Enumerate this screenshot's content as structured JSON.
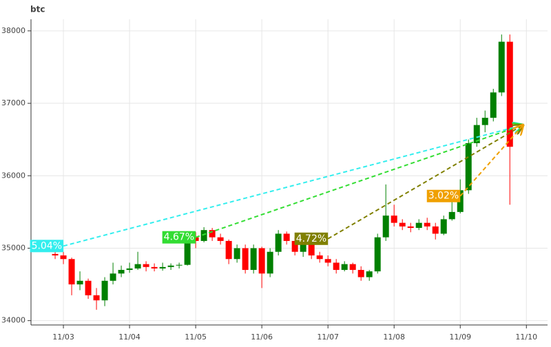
{
  "chart_data": {
    "type": "candlestick",
    "title": "btc",
    "x": [
      2.875,
      3,
      3.125,
      3.25,
      3.375,
      3.5,
      3.625,
      3.75,
      3.875,
      4,
      4.125,
      4.25,
      4.375,
      4.5,
      4.625,
      4.75,
      4.875,
      5,
      5.125,
      5.25,
      5.375,
      5.5,
      5.625,
      5.75,
      5.875,
      6,
      6.125,
      6.25,
      6.375,
      6.5,
      6.625,
      6.75,
      6.875,
      7,
      7.125,
      7.25,
      7.375,
      7.5,
      7.625,
      7.75,
      7.875,
      8,
      8.125,
      8.25,
      8.375,
      8.5,
      8.625,
      8.75,
      8.875,
      9,
      9.125,
      9.25,
      9.375,
      9.5,
      9.625,
      9.75
    ],
    "open": [
      34920,
      34900,
      34850,
      34500,
      34550,
      34350,
      34280,
      34550,
      34650,
      34700,
      34720,
      34780,
      34740,
      34720,
      34740,
      34760,
      34770,
      35150,
      35100,
      35250,
      35150,
      35100,
      34850,
      35000,
      34700,
      35000,
      34650,
      34950,
      35200,
      35100,
      34950,
      35050,
      34900,
      34850,
      34800,
      34700,
      34780,
      34700,
      34600,
      34680,
      35150,
      35450,
      35350,
      35300,
      35280,
      35350,
      35300,
      35200,
      35400,
      35500,
      35800,
      36450,
      36700,
      36800,
      37150,
      37850
    ],
    "high": [
      34950,
      34950,
      34870,
      34680,
      34580,
      34450,
      34600,
      34800,
      34760,
      34800,
      34950,
      34820,
      34790,
      34800,
      34790,
      34800,
      35170,
      35220,
      35290,
      35280,
      35200,
      35120,
      35050,
      35050,
      35050,
      35020,
      35000,
      35250,
      35230,
      35150,
      35100,
      35080,
      34950,
      34900,
      34850,
      34820,
      34800,
      34750,
      34700,
      35200,
      35880,
      35600,
      35400,
      35350,
      35400,
      35420,
      35350,
      35450,
      35650,
      35950,
      36500,
      36800,
      36900,
      37200,
      37950,
      37950
    ],
    "low": [
      34850,
      34780,
      34350,
      34420,
      34300,
      34150,
      34200,
      34500,
      34600,
      34660,
      34700,
      34680,
      34680,
      34690,
      34700,
      34720,
      34760,
      35000,
      35080,
      35100,
      35050,
      34780,
      34800,
      34650,
      34650,
      34450,
      34600,
      34900,
      35050,
      34900,
      34880,
      34850,
      34800,
      34750,
      34650,
      34680,
      34650,
      34550,
      34550,
      34650,
      35100,
      35300,
      35250,
      35220,
      35250,
      35250,
      35120,
      35180,
      35380,
      35480,
      35750,
      36400,
      36600,
      36750,
      37100,
      35600
    ],
    "close": [
      34900,
      34850,
      34500,
      34550,
      34350,
      34280,
      34550,
      34650,
      34700,
      34720,
      34780,
      34740,
      34720,
      34740,
      34760,
      34770,
      35150,
      35100,
      35250,
      35150,
      35100,
      34850,
      35000,
      34700,
      35000,
      34650,
      34950,
      35200,
      35100,
      34950,
      35050,
      34900,
      34850,
      34800,
      34700,
      34780,
      34700,
      34600,
      34680,
      35150,
      35450,
      35350,
      35300,
      35280,
      35350,
      35300,
      35200,
      35400,
      35500,
      35800,
      36450,
      36700,
      36800,
      37150,
      37850,
      36400
    ],
    "up_color": "#008000",
    "down_color": "#ff0000",
    "annotations": [
      {
        "text": "5.04%",
        "x": 3.0,
        "y": 35030,
        "x2": 9.95,
        "y2": 36700,
        "color": "#33eeee"
      },
      {
        "text": "4.67%",
        "x": 5.0,
        "y": 35150,
        "x2": 9.95,
        "y2": 36700,
        "color": "#33dd33"
      },
      {
        "text": "4.72%",
        "x": 7.0,
        "y": 35130,
        "x2": 9.95,
        "y2": 36700,
        "color": "#808000"
      },
      {
        "text": "3.02%",
        "x": 9.0,
        "y": 35720,
        "x2": 9.95,
        "y2": 36700,
        "color": "#f0a000"
      }
    ],
    "xlim": [
      2.51,
      10.32
    ],
    "ylim": [
      33940,
      38160
    ],
    "xticks": [
      {
        "value": 3,
        "label": "11/03"
      },
      {
        "value": 4,
        "label": "11/04"
      },
      {
        "value": 5,
        "label": "11/05"
      },
      {
        "value": 6,
        "label": "11/06"
      },
      {
        "value": 7,
        "label": "11/07"
      },
      {
        "value": 8,
        "label": "11/08"
      },
      {
        "value": 9,
        "label": "11/09"
      },
      {
        "value": 10,
        "label": "11/10"
      }
    ],
    "yticks": [
      34000,
      35000,
      36000,
      37000,
      38000
    ],
    "grid": true
  }
}
